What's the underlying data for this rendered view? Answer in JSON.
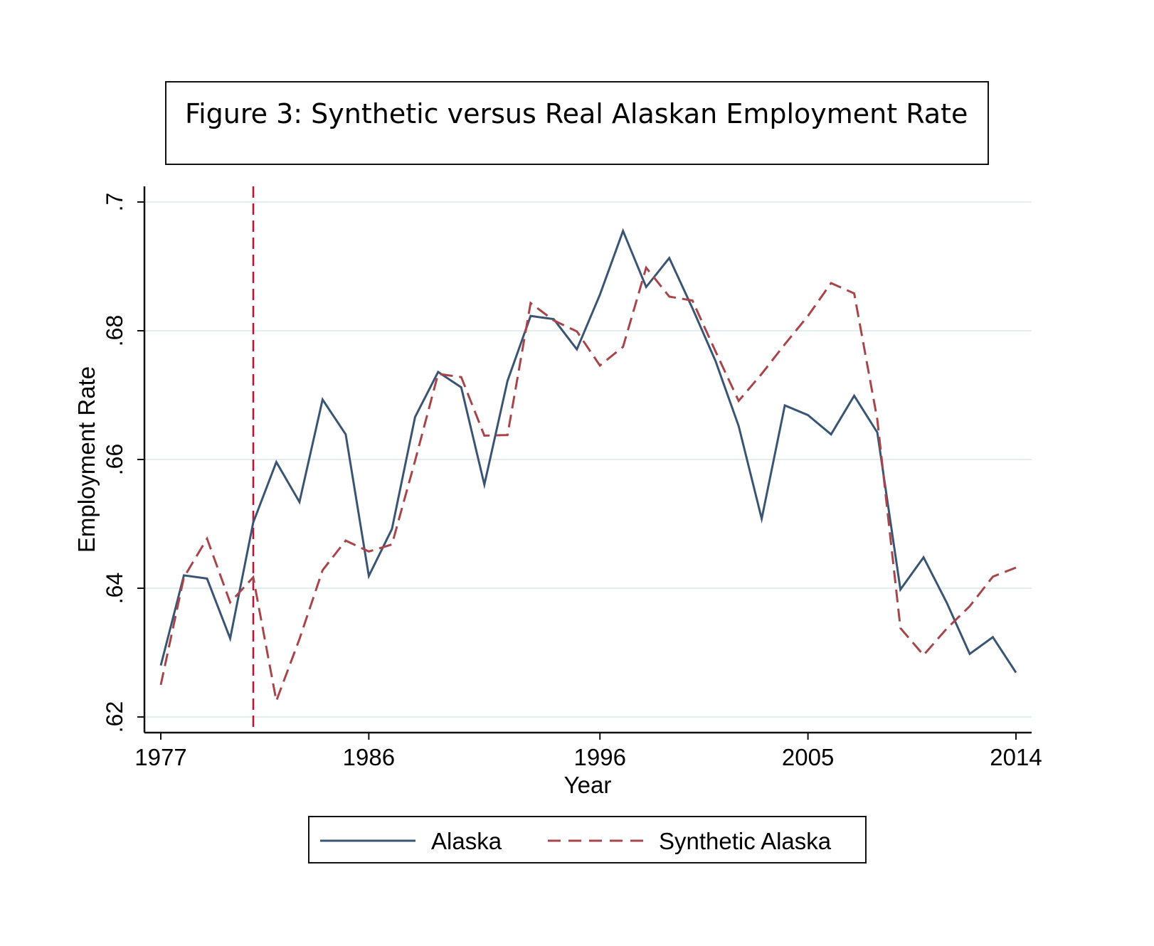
{
  "chart_data": {
    "type": "line",
    "title": "Figure 3: Synthetic versus Real Alaskan Employment Rate",
    "xlabel": "Year",
    "ylabel": "Employment Rate",
    "xlim": [
      1977,
      2014
    ],
    "ylim": [
      0.62,
      0.7
    ],
    "x_ticks": [
      1977,
      1986,
      1996,
      2005,
      2014
    ],
    "x_tick_labels": [
      "1977",
      "1986",
      "1996",
      "2005",
      "2014"
    ],
    "y_ticks": [
      0.62,
      0.64,
      0.66,
      0.68,
      0.7
    ],
    "y_tick_labels": [
      ".62",
      ".64",
      ".66",
      ".68",
      ".7"
    ],
    "grid": true,
    "legend_position": "bottom",
    "treatment_line": {
      "x": 1981,
      "color": "#c8102e",
      "style": "dashed"
    },
    "x": [
      1977,
      1978,
      1979,
      1980,
      1981,
      1982,
      1983,
      1984,
      1985,
      1986,
      1987,
      1988,
      1989,
      1990,
      1991,
      1992,
      1993,
      1994,
      1995,
      1996,
      1997,
      1998,
      1999,
      2000,
      2001,
      2002,
      2003,
      2004,
      2005,
      2006,
      2007,
      2008,
      2009,
      2010,
      2011,
      2012,
      2013,
      2014
    ],
    "series": [
      {
        "name": "Alaska",
        "color": "#3a5573",
        "style": "solid",
        "values": [
          0.628,
          0.642,
          0.6415,
          0.6322,
          0.6502,
          0.6596,
          0.6534,
          0.6693,
          0.6639,
          0.6419,
          0.6492,
          0.6666,
          0.6736,
          0.6712,
          0.6561,
          0.6722,
          0.6823,
          0.6818,
          0.6771,
          0.6856,
          0.6955,
          0.6868,
          0.6913,
          0.6835,
          0.6753,
          0.6652,
          0.6508,
          0.6684,
          0.6669,
          0.6639,
          0.6699,
          0.6642,
          0.6398,
          0.6448,
          0.6378,
          0.6298,
          0.6324,
          0.6269
        ]
      },
      {
        "name": "Synthetic Alaska",
        "color": "#a8454a",
        "style": "dashed",
        "values": [
          0.625,
          0.6417,
          0.6477,
          0.6378,
          0.6417,
          0.6225,
          0.6321,
          0.6428,
          0.6474,
          0.6457,
          0.6468,
          0.6598,
          0.6733,
          0.6728,
          0.6637,
          0.6638,
          0.6843,
          0.6816,
          0.6799,
          0.6746,
          0.6775,
          0.6898,
          0.6853,
          0.6847,
          0.6768,
          0.6691,
          0.6733,
          0.6779,
          0.6823,
          0.6874,
          0.6858,
          0.6662,
          0.6338,
          0.6296,
          0.6337,
          0.6372,
          0.6418,
          0.6432
        ]
      }
    ]
  }
}
